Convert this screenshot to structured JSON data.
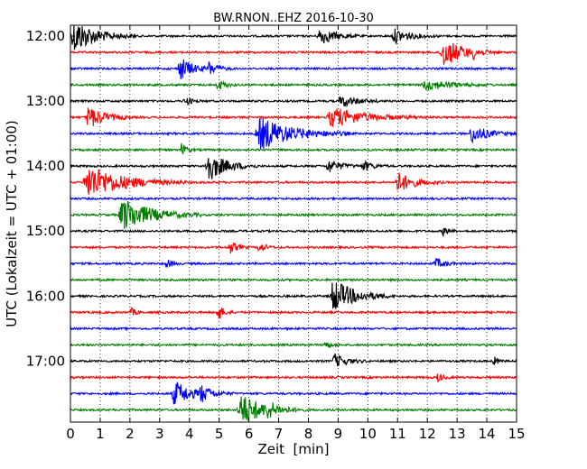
{
  "chart_data": {
    "type": "line",
    "title": "BW.RNON..EHZ 2016-10-30",
    "xlabel": "Zeit  [min]",
    "ylabel": "UTC (Lokalzeit = UTC + 01:00)",
    "xlim": [
      0,
      15
    ],
    "x_ticks": [
      0,
      1,
      2,
      3,
      4,
      5,
      6,
      7,
      8,
      9,
      10,
      11,
      12,
      13,
      14,
      15
    ],
    "x_tick_labels": [
      "0",
      "1",
      "2",
      "3",
      "4",
      "5",
      "6",
      "7",
      "8",
      "9",
      "10",
      "11",
      "12",
      "13",
      "14",
      "15"
    ],
    "y_tick_labels": [
      "12:00",
      "13:00",
      "14:00",
      "15:00",
      "16:00",
      "17:00"
    ],
    "rows_per_hour": 4,
    "trace_color_cycle": [
      "#000000",
      "#ff0000",
      "#0000ff",
      "#008000"
    ],
    "grid": "vertical dotted",
    "traces": [
      {
        "start": "12:00",
        "events": [
          {
            "t": 0.0,
            "dur": 2.2,
            "amp": 0.95
          },
          {
            "t": 8.3,
            "dur": 1.5,
            "amp": 0.5
          },
          {
            "t": 10.8,
            "dur": 1.6,
            "amp": 0.4
          }
        ]
      },
      {
        "start": "12:15",
        "events": [
          {
            "t": 12.4,
            "dur": 2.0,
            "amp": 0.85
          },
          {
            "t": 13.5,
            "dur": 0.8,
            "amp": 0.4
          }
        ]
      },
      {
        "start": "12:30",
        "events": [
          {
            "t": 3.6,
            "dur": 1.2,
            "amp": 0.7
          },
          {
            "t": 4.6,
            "dur": 0.9,
            "amp": 0.4
          }
        ]
      },
      {
        "start": "12:45",
        "events": [
          {
            "t": 4.9,
            "dur": 0.8,
            "amp": 0.3
          },
          {
            "t": 11.8,
            "dur": 2.5,
            "amp": 0.3
          }
        ]
      },
      {
        "start": "13:00",
        "events": [
          {
            "t": 3.8,
            "dur": 0.6,
            "amp": 0.3
          },
          {
            "t": 9.0,
            "dur": 1.5,
            "amp": 0.35
          }
        ]
      },
      {
        "start": "13:15",
        "events": [
          {
            "t": 0.5,
            "dur": 1.6,
            "amp": 0.65
          },
          {
            "t": 8.6,
            "dur": 3.4,
            "amp": 0.55
          }
        ]
      },
      {
        "start": "13:30",
        "events": [
          {
            "t": 6.2,
            "dur": 3.2,
            "amp": 0.95
          },
          {
            "t": 13.4,
            "dur": 1.6,
            "amp": 0.5
          }
        ]
      },
      {
        "start": "13:45",
        "events": [
          {
            "t": 3.7,
            "dur": 0.5,
            "amp": 0.35
          }
        ]
      },
      {
        "start": "14:00",
        "events": [
          {
            "t": 4.5,
            "dur": 1.8,
            "amp": 0.9
          },
          {
            "t": 8.6,
            "dur": 1.2,
            "amp": 0.4
          },
          {
            "t": 9.8,
            "dur": 0.9,
            "amp": 0.3
          }
        ]
      },
      {
        "start": "14:15",
        "events": [
          {
            "t": 0.4,
            "dur": 3.5,
            "amp": 0.95
          },
          {
            "t": 10.9,
            "dur": 1.6,
            "amp": 0.6
          }
        ]
      },
      {
        "start": "14:30",
        "events": []
      },
      {
        "start": "14:45",
        "events": [
          {
            "t": 1.6,
            "dur": 2.8,
            "amp": 0.95
          }
        ]
      },
      {
        "start": "15:00",
        "events": [
          {
            "t": 12.5,
            "dur": 0.5,
            "amp": 0.3
          }
        ]
      },
      {
        "start": "15:15",
        "events": [
          {
            "t": 5.3,
            "dur": 0.7,
            "amp": 0.4
          },
          {
            "t": 6.3,
            "dur": 0.6,
            "amp": 0.35
          }
        ]
      },
      {
        "start": "15:30",
        "events": [
          {
            "t": 3.2,
            "dur": 0.5,
            "amp": 0.3
          },
          {
            "t": 12.2,
            "dur": 1.0,
            "amp": 0.3
          }
        ]
      },
      {
        "start": "15:45",
        "events": []
      },
      {
        "start": "16:00",
        "events": [
          {
            "t": 8.7,
            "dur": 2.2,
            "amp": 0.95
          }
        ]
      },
      {
        "start": "16:15",
        "events": [
          {
            "t": 4.9,
            "dur": 0.6,
            "amp": 0.5
          },
          {
            "t": 2.0,
            "dur": 0.5,
            "amp": 0.25
          }
        ]
      },
      {
        "start": "16:30",
        "events": []
      },
      {
        "start": "16:45",
        "events": [
          {
            "t": 8.5,
            "dur": 0.6,
            "amp": 0.25
          }
        ]
      },
      {
        "start": "17:00",
        "events": [
          {
            "t": 8.8,
            "dur": 1.2,
            "amp": 0.4
          },
          {
            "t": 14.2,
            "dur": 0.4,
            "amp": 0.3
          }
        ]
      },
      {
        "start": "17:15",
        "events": [
          {
            "t": 12.3,
            "dur": 0.6,
            "amp": 0.25
          }
        ]
      },
      {
        "start": "17:30",
        "events": [
          {
            "t": 3.4,
            "dur": 1.6,
            "amp": 0.75
          },
          {
            "t": 4.3,
            "dur": 1.2,
            "amp": 0.55
          }
        ]
      },
      {
        "start": "17:45",
        "events": [
          {
            "t": 5.6,
            "dur": 2.2,
            "amp": 0.95
          },
          {
            "t": 6.5,
            "dur": 1.4,
            "amp": 0.6
          }
        ]
      }
    ]
  }
}
